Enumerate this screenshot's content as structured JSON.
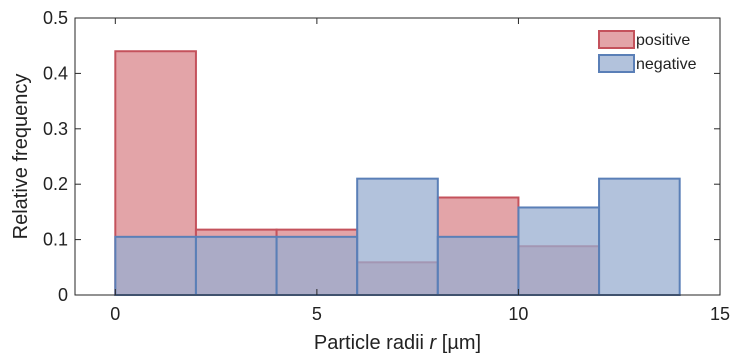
{
  "chart_data": {
    "type": "bar",
    "bins": [
      [
        0,
        2
      ],
      [
        2,
        4
      ],
      [
        4,
        6
      ],
      [
        6,
        8
      ],
      [
        8,
        10
      ],
      [
        10,
        12
      ],
      [
        12,
        14
      ],
      [
        14,
        15
      ]
    ],
    "series": [
      {
        "name": "positive",
        "values": [
          0.44,
          0.118,
          0.118,
          0.059,
          0.176,
          0.088,
          0.0,
          0.0
        ],
        "fill": "#d9868b",
        "edge": "#c4525c"
      },
      {
        "name": "negative",
        "values": [
          0.105,
          0.105,
          0.105,
          0.21,
          0.105,
          0.158,
          0.21,
          0.0
        ],
        "fill": "#98aed0",
        "edge": "#5a7fb7"
      }
    ],
    "xlabel_prefix": "Particle radii ",
    "xlabel_var": "r",
    "xlabel_suffix": " [µm]",
    "ylabel": "Relative frequency",
    "xlim": [
      -1,
      15
    ],
    "ylim": [
      0,
      0.5
    ],
    "xticks": [
      0,
      5,
      10,
      15
    ],
    "yticks": [
      0,
      0.1,
      0.2,
      0.3,
      0.4,
      0.5
    ],
    "xtick_labels": [
      "0",
      "5",
      "10",
      "15"
    ],
    "ytick_labels": [
      "0",
      "0.1",
      "0.2",
      "0.3",
      "0.4",
      "0.5"
    ],
    "legend_position": "top-right",
    "grid": false,
    "series_opacity": 0.75
  }
}
